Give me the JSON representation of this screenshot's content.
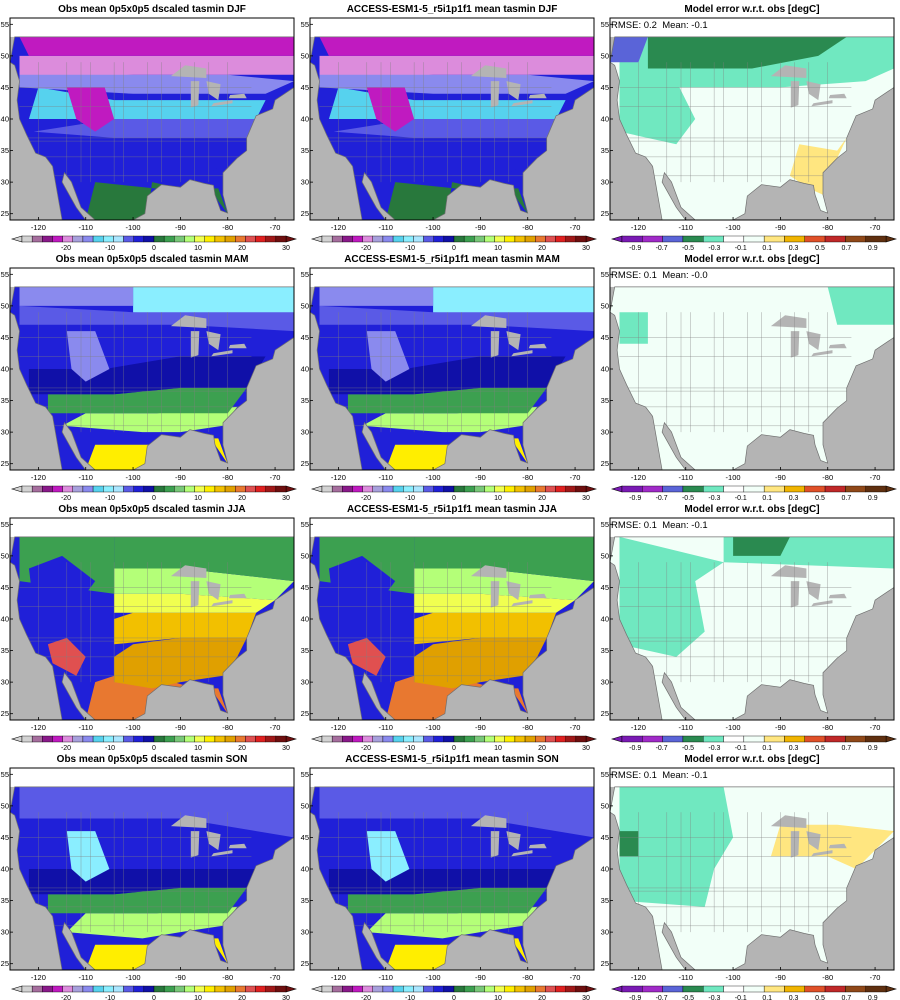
{
  "colors": {
    "land_grey": "#b4b4b4",
    "ocean_white": "#ffffff",
    "temp_scale": [
      "#d2d2d2",
      "#a66e9e",
      "#8a1a8a",
      "#c01ac0",
      "#dc8cdc",
      "#a7a0dc",
      "#8a8aee",
      "#56d2ee",
      "#8aeeff",
      "#aae6ff",
      "#5a5ae6",
      "#2020d8",
      "#1010a8",
      "#28783c",
      "#3ca050",
      "#78c878",
      "#b4ff78",
      "#f0ff50",
      "#ffee00",
      "#f2c000",
      "#e0a000",
      "#e87830",
      "#e05050",
      "#e02020",
      "#a01818",
      "#701010"
    ],
    "err_scale": [
      "#7a1ab4",
      "#a02ac8",
      "#5a64d8",
      "#2a8a50",
      "#70e8c0",
      "#ffffff",
      "#f2fff8",
      "#ffe680",
      "#f0b400",
      "#e05028",
      "#c02828",
      "#904818",
      "#603010"
    ]
  },
  "chart_data": [
    {
      "type": "heatmap",
      "title": "Obs mean 0p5x0p5 dscaled tasmin DJF",
      "season": "DJF",
      "kind": "mean",
      "x_ticks": [
        "-120",
        "-110",
        "-100",
        "-90",
        "-80",
        "-70"
      ],
      "y_ticks": [
        "25",
        "30",
        "35",
        "40",
        "45",
        "50",
        "55"
      ],
      "colorbar_ticks": [
        "-20",
        "-10",
        "0",
        "10",
        "20",
        "30"
      ]
    },
    {
      "type": "heatmap",
      "title": "ACCESS-ESM1-5_r5i1p1f1 mean tasmin DJF",
      "season": "DJF",
      "kind": "mean",
      "x_ticks": [
        "-120",
        "-110",
        "-100",
        "-90",
        "-80",
        "-70"
      ],
      "y_ticks": [
        "25",
        "30",
        "35",
        "40",
        "45",
        "50",
        "55"
      ],
      "colorbar_ticks": [
        "-20",
        "-10",
        "0",
        "10",
        "20",
        "30"
      ]
    },
    {
      "type": "heatmap",
      "title": "Model error w.r.t. obs [degC]",
      "season": "DJF",
      "kind": "error",
      "rmse_label": "RMSE:",
      "rmse": "0.2",
      "mean_label": "Mean:",
      "mean": "-0.1",
      "x_ticks": [
        "-120",
        "-110",
        "-100",
        "-90",
        "-80",
        "-70"
      ],
      "y_ticks": [
        "25",
        "30",
        "35",
        "40",
        "45",
        "50",
        "55"
      ],
      "colorbar_ticks": [
        "-0.9",
        "-0.7",
        "-0.5",
        "-0.3",
        "-0.1",
        "0.1",
        "0.3",
        "0.5",
        "0.7",
        "0.9"
      ]
    },
    {
      "type": "heatmap",
      "title": "Obs mean 0p5x0p5 dscaled tasmin MAM",
      "season": "MAM",
      "kind": "mean",
      "x_ticks": [
        "-120",
        "-110",
        "-100",
        "-90",
        "-80",
        "-70"
      ],
      "y_ticks": [
        "25",
        "30",
        "35",
        "40",
        "45",
        "50",
        "55"
      ],
      "colorbar_ticks": [
        "-20",
        "-10",
        "0",
        "10",
        "20",
        "30"
      ]
    },
    {
      "type": "heatmap",
      "title": "ACCESS-ESM1-5_r5i1p1f1 mean tasmin MAM",
      "season": "MAM",
      "kind": "mean",
      "x_ticks": [
        "-120",
        "-110",
        "-100",
        "-90",
        "-80",
        "-70"
      ],
      "y_ticks": [
        "25",
        "30",
        "35",
        "40",
        "45",
        "50",
        "55"
      ],
      "colorbar_ticks": [
        "-20",
        "-10",
        "0",
        "10",
        "20",
        "30"
      ]
    },
    {
      "type": "heatmap",
      "title": "Model error w.r.t. obs [degC]",
      "season": "MAM",
      "kind": "error",
      "rmse_label": "RMSE:",
      "rmse": "0.1",
      "mean_label": "Mean:",
      "mean": "-0.0",
      "x_ticks": [
        "-120",
        "-110",
        "-100",
        "-90",
        "-80",
        "-70"
      ],
      "y_ticks": [
        "25",
        "30",
        "35",
        "40",
        "45",
        "50",
        "55"
      ],
      "colorbar_ticks": [
        "-0.9",
        "-0.7",
        "-0.5",
        "-0.3",
        "-0.1",
        "0.1",
        "0.3",
        "0.5",
        "0.7",
        "0.9"
      ]
    },
    {
      "type": "heatmap",
      "title": "Obs mean 0p5x0p5 dscaled tasmin JJA",
      "season": "JJA",
      "kind": "mean",
      "x_ticks": [
        "-120",
        "-110",
        "-100",
        "-90",
        "-80",
        "-70"
      ],
      "y_ticks": [
        "25",
        "30",
        "35",
        "40",
        "45",
        "50",
        "55"
      ],
      "colorbar_ticks": [
        "-20",
        "-10",
        "0",
        "10",
        "20",
        "30"
      ]
    },
    {
      "type": "heatmap",
      "title": "ACCESS-ESM1-5_r5i1p1f1 mean tasmin JJA",
      "season": "JJA",
      "kind": "mean",
      "x_ticks": [
        "-120",
        "-110",
        "-100",
        "-90",
        "-80",
        "-70"
      ],
      "y_ticks": [
        "25",
        "30",
        "35",
        "40",
        "45",
        "50",
        "55"
      ],
      "colorbar_ticks": [
        "-20",
        "-10",
        "0",
        "10",
        "20",
        "30"
      ]
    },
    {
      "type": "heatmap",
      "title": "Model error w.r.t. obs [degC]",
      "season": "JJA",
      "kind": "error",
      "rmse_label": "RMSE:",
      "rmse": "0.1",
      "mean_label": "Mean:",
      "mean": "-0.1",
      "x_ticks": [
        "-120",
        "-110",
        "-100",
        "-90",
        "-80",
        "-70"
      ],
      "y_ticks": [
        "25",
        "30",
        "35",
        "40",
        "45",
        "50",
        "55"
      ],
      "colorbar_ticks": [
        "-0.9",
        "-0.7",
        "-0.5",
        "-0.3",
        "-0.1",
        "0.1",
        "0.3",
        "0.5",
        "0.7",
        "0.9"
      ]
    },
    {
      "type": "heatmap",
      "title": "Obs mean 0p5x0p5 dscaled tasmin SON",
      "season": "SON",
      "kind": "mean",
      "x_ticks": [
        "-120",
        "-110",
        "-100",
        "-90",
        "-80",
        "-70"
      ],
      "y_ticks": [
        "25",
        "30",
        "35",
        "40",
        "45",
        "50",
        "55"
      ],
      "colorbar_ticks": [
        "-20",
        "-10",
        "0",
        "10",
        "20",
        "30"
      ]
    },
    {
      "type": "heatmap",
      "title": "ACCESS-ESM1-5_r5i1p1f1 mean tasmin SON",
      "season": "SON",
      "kind": "mean",
      "x_ticks": [
        "-120",
        "-110",
        "-100",
        "-90",
        "-80",
        "-70"
      ],
      "y_ticks": [
        "25",
        "30",
        "35",
        "40",
        "45",
        "50",
        "55"
      ],
      "colorbar_ticks": [
        "-20",
        "-10",
        "0",
        "10",
        "20",
        "30"
      ]
    },
    {
      "type": "heatmap",
      "title": "Model error w.r.t. obs [degC]",
      "season": "SON",
      "kind": "error",
      "rmse_label": "RMSE:",
      "rmse": "0.1",
      "mean_label": "Mean:",
      "mean": "-0.1",
      "x_ticks": [
        "-120",
        "-110",
        "-100",
        "-90",
        "-80",
        "-70"
      ],
      "y_ticks": [
        "25",
        "30",
        "35",
        "40",
        "45",
        "50",
        "55"
      ],
      "colorbar_ticks": [
        "-0.9",
        "-0.7",
        "-0.5",
        "-0.3",
        "-0.1",
        "0.1",
        "0.3",
        "0.5",
        "0.7",
        "0.9"
      ]
    }
  ]
}
